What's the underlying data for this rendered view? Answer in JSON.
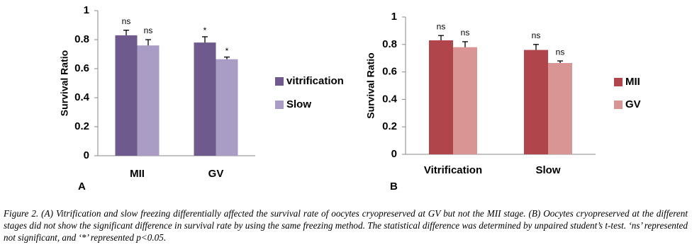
{
  "chart_data": [
    {
      "type": "bar",
      "panel": "A",
      "y_label": "Survival Ratio",
      "categories": [
        "MII",
        "GV"
      ],
      "series": [
        {
          "name": "vitrification",
          "color": "#6f5a8e",
          "values": [
            0.83,
            0.78
          ],
          "errors": [
            0.035,
            0.04
          ],
          "annotations": [
            "ns",
            "*"
          ]
        },
        {
          "name": "Slow",
          "color": "#a99cc5",
          "values": [
            0.76,
            0.665
          ],
          "errors": [
            0.04,
            0.015
          ],
          "annotations": [
            "ns",
            "*"
          ]
        }
      ],
      "ylim": [
        0,
        1
      ],
      "yticks": [
        0,
        0.2,
        0.4,
        0.6,
        0.8,
        1
      ],
      "grid": false
    },
    {
      "type": "bar",
      "panel": "B",
      "y_label": "Survival Ratio",
      "categories": [
        "Vitrification",
        "Slow"
      ],
      "series": [
        {
          "name": "MII",
          "color": "#b0464b",
          "values": [
            0.83,
            0.76
          ],
          "errors": [
            0.035,
            0.04
          ],
          "annotations": [
            "ns",
            "ns"
          ]
        },
        {
          "name": "GV",
          "color": "#d99594",
          "values": [
            0.78,
            0.665
          ],
          "errors": [
            0.04,
            0.015
          ],
          "annotations": [
            "ns",
            "ns"
          ]
        }
      ],
      "ylim": [
        0,
        1
      ],
      "yticks": [
        0,
        0.2,
        0.4,
        0.6,
        0.8,
        1
      ],
      "grid": false
    }
  ],
  "caption": "Figure 2. (A) Vitrification and slow freezing differentially affected the survival rate of oocytes cryopreserved at GV but not the MII stage. (B) Oocytes cryopreserved at the different stages did not show the significant difference in survival rate by using the same freezing method. The statistical difference was determined by unpaired student’s t-test. ‘ns’ represented not significant, and ‘*’ represented p<0.05."
}
